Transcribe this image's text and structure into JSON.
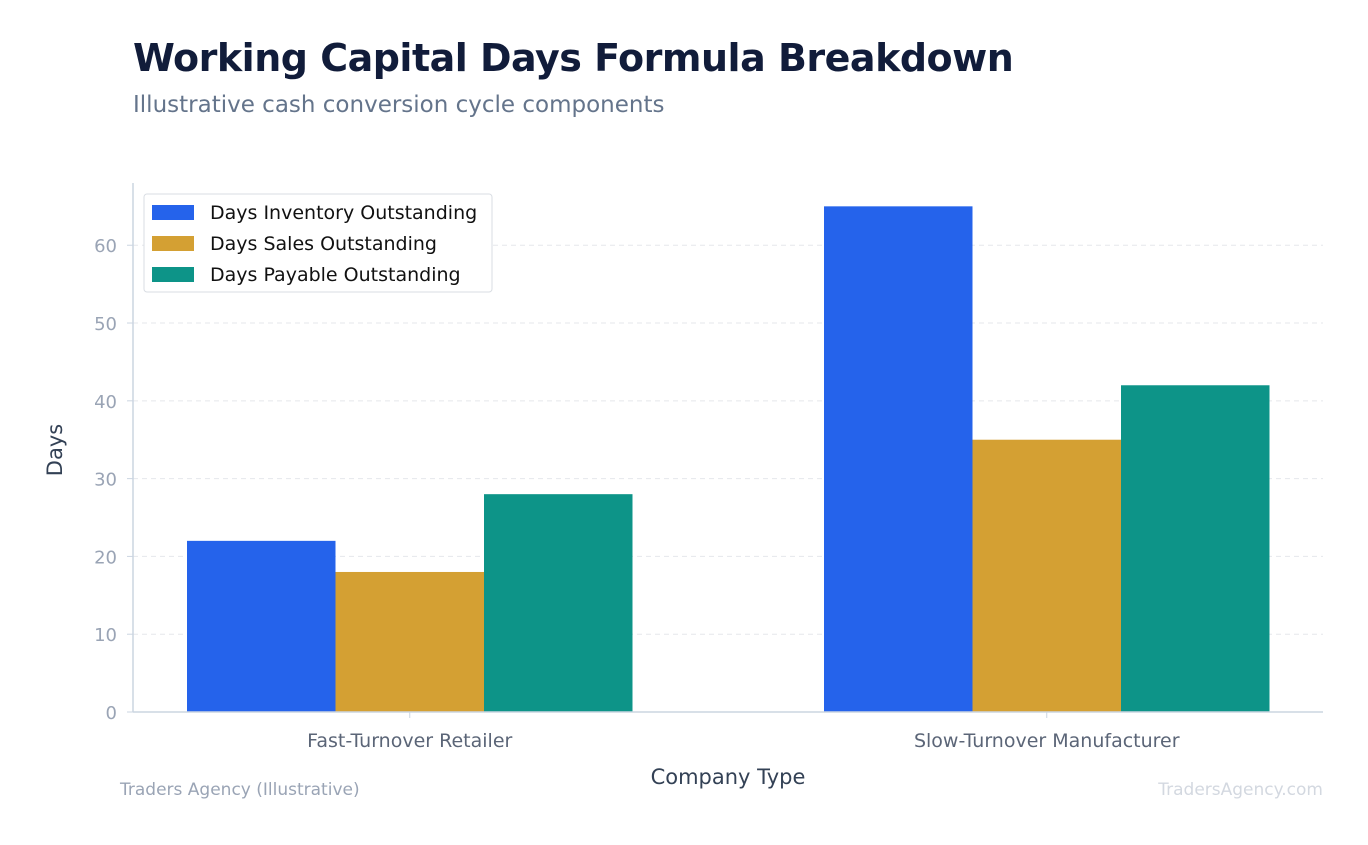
{
  "header": {
    "title": "Working Capital Days Formula Breakdown",
    "subtitle": "Illustrative cash conversion cycle components"
  },
  "footer": {
    "source": "Traders Agency (Illustrative)",
    "watermark": "TradersAgency.com"
  },
  "chart_data": {
    "type": "bar",
    "title": "Working Capital Days Formula Breakdown",
    "subtitle": "Illustrative cash conversion cycle components",
    "xlabel": "Company Type",
    "ylabel": "Days",
    "categories": [
      "Fast-Turnover Retailer",
      "Slow-Turnover Manufacturer"
    ],
    "series": [
      {
        "name": "Days Inventory Outstanding",
        "color": "#2563eb",
        "values": [
          22,
          65
        ]
      },
      {
        "name": "Days Sales Outstanding",
        "color": "#d4a033",
        "values": [
          18,
          35
        ]
      },
      {
        "name": "Days Payable Outstanding",
        "color": "#0d9488",
        "values": [
          28,
          42
        ]
      }
    ],
    "ylim": [
      0,
      68
    ],
    "yticks": [
      0,
      10,
      20,
      30,
      40,
      50,
      60
    ],
    "grid": true,
    "legend": "top-left"
  }
}
